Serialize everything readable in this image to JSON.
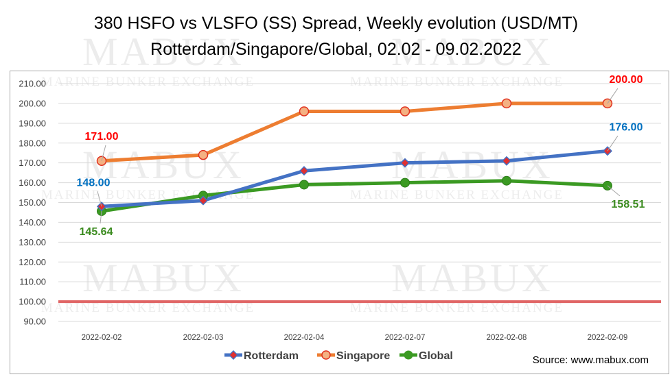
{
  "title_line1": "380 HSFO vs VLSFO (SS) Spread, Weekly evolution (USD/MT)",
  "title_line2": "Rotterdam/Singapore/Global, 02.02 - 09.02.2022",
  "source": "Source: www.mabux.com",
  "watermark": {
    "big": "MABUX",
    "small": "MARINE BUNKER EXCHANGE"
  },
  "colors": {
    "rotterdam": "#4472c4",
    "singapore": "#ed7d31",
    "global": "#3b9a23",
    "reference": "#e06666",
    "red_label": "#ff0000",
    "blue_label": "#0070c0",
    "green_label": "#3b8b1f"
  },
  "chart_data": {
    "type": "line",
    "title": "380 HSFO vs VLSFO (SS) Spread, Weekly evolution (USD/MT)",
    "subtitle": "Rotterdam/Singapore/Global, 02.02 - 09.02.2022",
    "categories": [
      "2022-02-02",
      "2022-02-03",
      "2022-02-04",
      "2022-02-07",
      "2022-02-08",
      "2022-02-09"
    ],
    "series": [
      {
        "name": "Rotterdam",
        "values": [
          148.0,
          151.0,
          166.0,
          170.0,
          171.0,
          176.0
        ],
        "color": "#4472c4",
        "marker": "diamond"
      },
      {
        "name": "Singapore",
        "values": [
          171.0,
          174.0,
          196.0,
          196.0,
          200.0,
          200.0
        ],
        "color": "#ed7d31",
        "marker": "circle"
      },
      {
        "name": "Global",
        "values": [
          145.64,
          153.5,
          159.0,
          160.0,
          161.0,
          158.51
        ],
        "color": "#3b9a23",
        "marker": "circle"
      }
    ],
    "reference_line": {
      "value": 100.0,
      "color": "#e06666"
    },
    "data_labels": [
      {
        "series": "Singapore",
        "index": 0,
        "text": "171.00",
        "color": "#ff0000"
      },
      {
        "series": "Singapore",
        "index": 5,
        "text": "200.00",
        "color": "#ff0000"
      },
      {
        "series": "Rotterdam",
        "index": 0,
        "text": "148.00",
        "color": "#0070c0"
      },
      {
        "series": "Rotterdam",
        "index": 5,
        "text": "176.00",
        "color": "#0070c0"
      },
      {
        "series": "Global",
        "index": 0,
        "text": "145.64",
        "color": "#3b8b1f"
      },
      {
        "series": "Global",
        "index": 5,
        "text": "158.51",
        "color": "#3b8b1f"
      }
    ],
    "y_ticks": [
      "90.00",
      "100.00",
      "110.00",
      "120.00",
      "130.00",
      "140.00",
      "150.00",
      "160.00",
      "170.00",
      "180.00",
      "190.00",
      "200.00",
      "210.00"
    ],
    "ylim": [
      90,
      210
    ],
    "grid": true,
    "legend": "bottom-center"
  }
}
